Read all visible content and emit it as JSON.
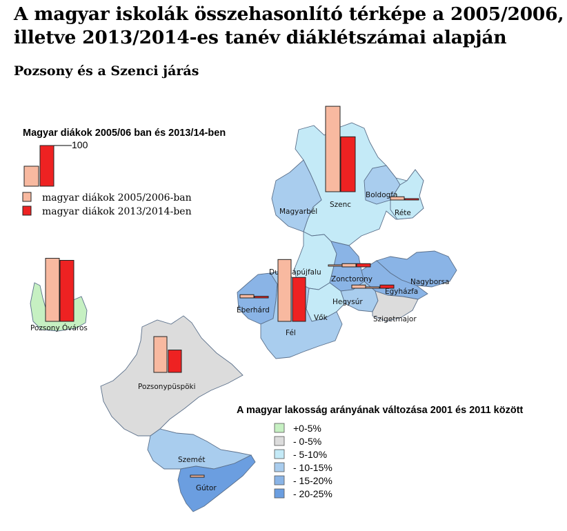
{
  "title": {
    "line1": "A magyar iskolák összehasonlító térképe a 2005/2006,",
    "line2": "illetve 2013/2014-es tanév diáklétszámai alapján"
  },
  "subtitle": "Pozsony és a Szenci járás",
  "bar_legend": {
    "title": "Magyar diákok 2005/06 ban és 2013/14-ben",
    "scale_value": "100",
    "series": [
      {
        "name": "magyar diákok 2005/2006-ban",
        "color": "#f8b9a0"
      },
      {
        "name": "magyar diákok 2013/2014-ben",
        "color": "#ee2222"
      }
    ]
  },
  "choropleth_legend": {
    "title": "A magyar lakosság arányának változása 2001 és 2011 között",
    "classes": [
      {
        "label": "+0-5%",
        "color": "#c6f0c2"
      },
      {
        "label": "- 0-5%",
        "color": "#dcdcdc"
      },
      {
        "label": "- 5-10%",
        "color": "#c4eaf7"
      },
      {
        "label": "- 10-15%",
        "color": "#a9cdee"
      },
      {
        "label": "- 15-20%",
        "color": "#8ab4e6"
      },
      {
        "label": "- 20-25%",
        "color": "#6b9ee0"
      }
    ]
  },
  "places": [
    {
      "name": "Szenc",
      "class": "- 5-10%"
    },
    {
      "name": "Boldogfa",
      "class": "- 10-15%"
    },
    {
      "name": "Réte",
      "class": "- 5-10%"
    },
    {
      "name": "Magyarbél",
      "class": "- 10-15%"
    },
    {
      "name": "Dunasápújfalu",
      "class": "- 5-10%"
    },
    {
      "name": "Zonctorony",
      "class": "- 15-20%"
    },
    {
      "name": "Nagyborsa",
      "class": "- 15-20%"
    },
    {
      "name": "Egyházfa",
      "class": "- 15-20%"
    },
    {
      "name": "Hegysúr",
      "class": "- 10-15%"
    },
    {
      "name": "Szigetmajor",
      "class": "- 0-5%"
    },
    {
      "name": "Éberhárd",
      "class": "- 15-20%"
    },
    {
      "name": "Vők",
      "class": "- 5-10%"
    },
    {
      "name": "Fél",
      "class": "- 10-15%"
    },
    {
      "name": "Pozsony Óváros",
      "class": "+0-5%"
    },
    {
      "name": "Pozsonypüspöki",
      "class": "- 0-5%"
    },
    {
      "name": "Szemét",
      "class": "- 10-15%"
    },
    {
      "name": "Gútor",
      "class": "- 20-25%"
    }
  ],
  "chart_data": {
    "type": "bar",
    "series": [
      {
        "name": "magyar diákok 2005/2006-ban",
        "color": "#f8b9a0",
        "values": [
          210,
          0,
          8,
          0,
          2,
          8,
          0,
          3,
          8,
          0,
          8,
          0,
          152,
          155,
          88,
          0,
          5
        ]
      },
      {
        "name": "magyar diákok 2013/2014-ben",
        "color": "#ee2222",
        "values": [
          135,
          0,
          2,
          0,
          1,
          8,
          0,
          8,
          0,
          0,
          4,
          0,
          108,
          150,
          55,
          0,
          0
        ]
      }
    ],
    "categories": [
      "Szenc",
      "Boldogfa",
      "Réte",
      "Magyarbél",
      "Dunasápújfalu",
      "Zonctorony",
      "Nagyborsa",
      "Egyházfa",
      "Hegysúr",
      "Szigetmajor",
      "Éberhárd",
      "Vők",
      "Fél",
      "Pozsony Óváros",
      "Pozsonypüspöki",
      "Szemét",
      "Gútor"
    ],
    "scale_reference": 100
  }
}
